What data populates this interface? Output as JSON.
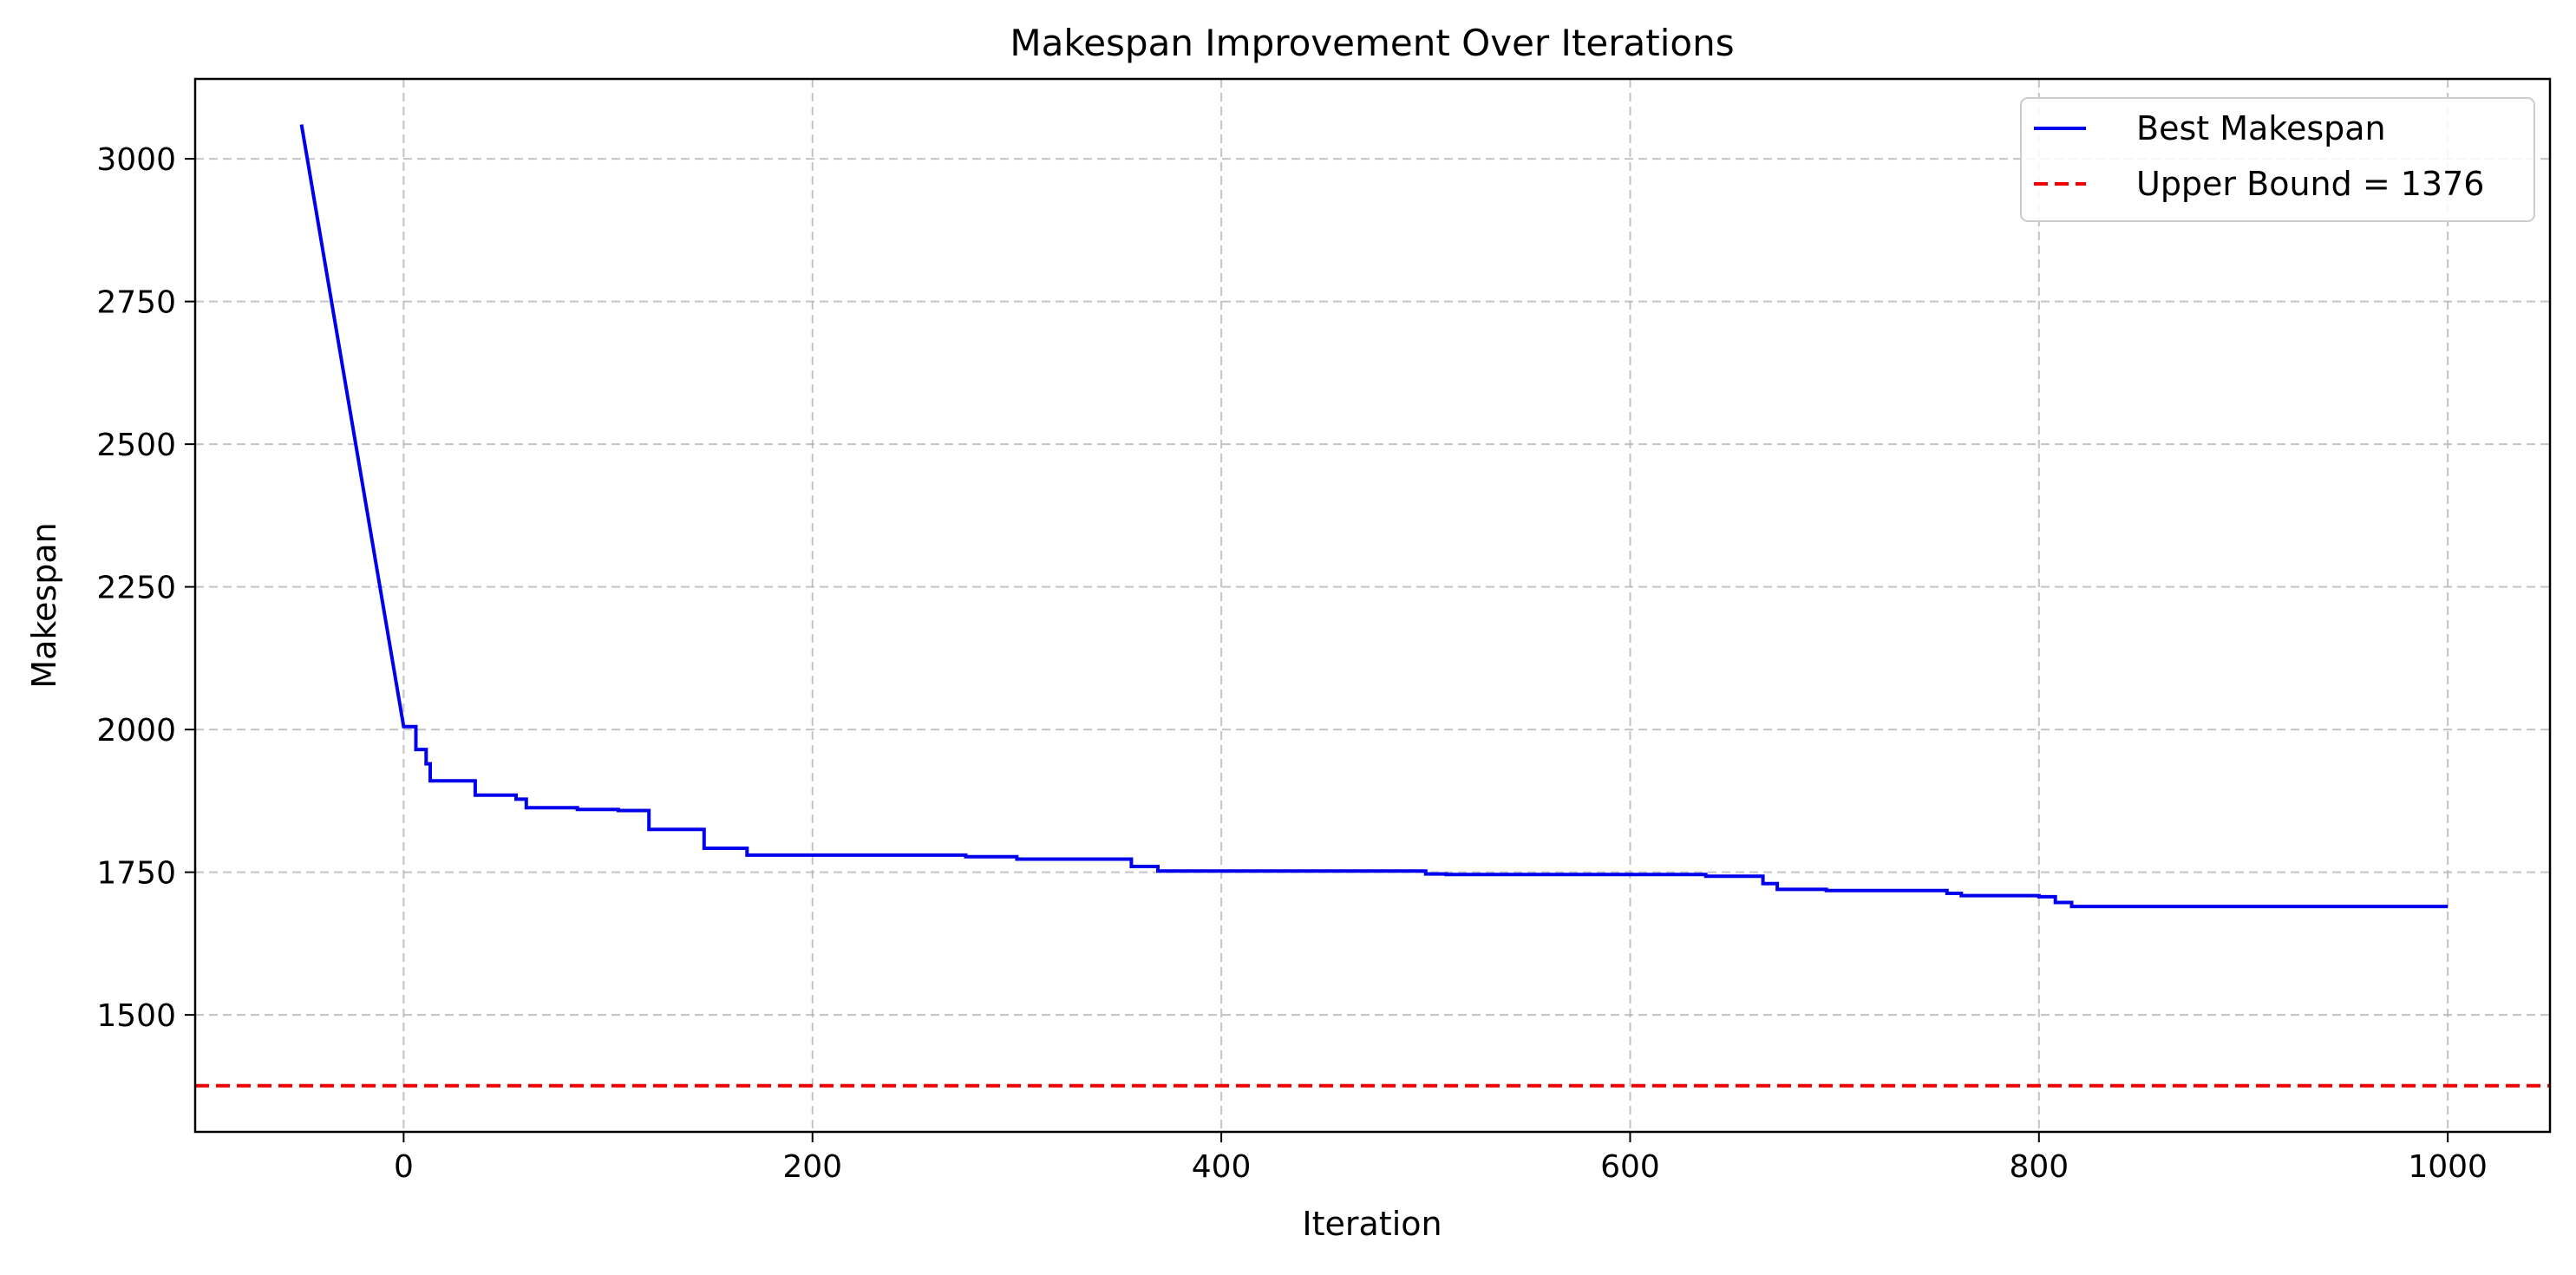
{
  "chart_data": {
    "type": "line",
    "title": "Makespan Improvement Over Iterations",
    "xlabel": "Iteration",
    "ylabel": "Makespan",
    "xlim": [
      -102,
      1050
    ],
    "ylim": [
      1295,
      3140
    ],
    "xticks": [
      0,
      200,
      400,
      600,
      800,
      1000
    ],
    "yticks": [
      1500,
      1750,
      2000,
      2250,
      2500,
      2750,
      3000
    ],
    "grid": true,
    "legend_position": "top-right",
    "series": [
      {
        "name": "Best Makespan",
        "color": "#0000ee",
        "style": "solid",
        "x": [
          -50,
          0,
          6,
          6,
          11,
          11,
          13,
          13,
          35,
          35,
          55,
          55,
          60,
          60,
          85,
          85,
          105,
          105,
          120,
          120,
          147,
          147,
          168,
          168,
          275,
          275,
          300,
          300,
          356,
          356,
          369,
          369,
          500,
          500,
          510,
          510,
          637,
          637,
          665,
          665,
          672,
          672,
          696,
          696,
          755,
          755,
          762,
          762,
          800,
          800,
          808,
          808,
          816,
          816,
          1000
        ],
        "y": [
          3060,
          2005,
          2005,
          1965,
          1965,
          1940,
          1940,
          1910,
          1910,
          1885,
          1885,
          1878,
          1878,
          1863,
          1863,
          1860,
          1860,
          1858,
          1858,
          1825,
          1825,
          1792,
          1792,
          1780,
          1780,
          1777,
          1777,
          1773,
          1773,
          1760,
          1760,
          1752,
          1752,
          1747,
          1747,
          1746,
          1746,
          1743,
          1743,
          1730,
          1730,
          1720,
          1720,
          1718,
          1718,
          1713,
          1713,
          1709,
          1709,
          1707,
          1707,
          1697,
          1697,
          1690,
          1690
        ]
      },
      {
        "name": "Upper Bound = 1376",
        "color": "#ee0000",
        "style": "dashed",
        "y": 1376
      }
    ]
  }
}
